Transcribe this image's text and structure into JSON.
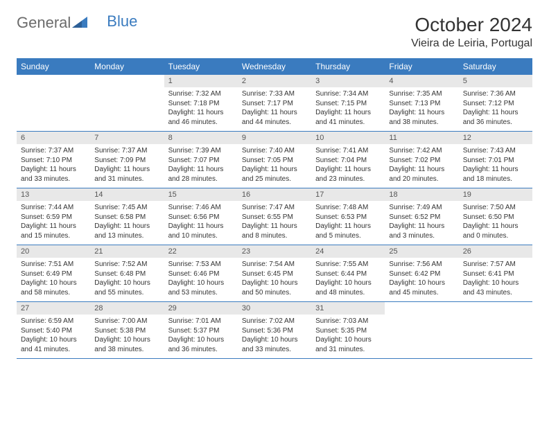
{
  "brand": {
    "general": "General",
    "blue": "Blue"
  },
  "title": "October 2024",
  "location": "Vieira de Leiria, Portugal",
  "colors": {
    "header_bg": "#3a7bbf",
    "header_text": "#ffffff",
    "daynum_bg": "#e8e8e8",
    "border": "#3a7bbf",
    "text": "#333333",
    "logo_gray": "#6b6b6b",
    "logo_blue": "#3a7bbf"
  },
  "fonts": {
    "title_size": 28,
    "location_size": 16,
    "header_size": 12,
    "daynum_size": 11,
    "body_size": 10
  },
  "days_of_week": [
    "Sunday",
    "Monday",
    "Tuesday",
    "Wednesday",
    "Thursday",
    "Friday",
    "Saturday"
  ],
  "weeks": [
    [
      null,
      null,
      {
        "n": "1",
        "sunrise": "Sunrise: 7:32 AM",
        "sunset": "Sunset: 7:18 PM",
        "daylight1": "Daylight: 11 hours",
        "daylight2": "and 46 minutes."
      },
      {
        "n": "2",
        "sunrise": "Sunrise: 7:33 AM",
        "sunset": "Sunset: 7:17 PM",
        "daylight1": "Daylight: 11 hours",
        "daylight2": "and 44 minutes."
      },
      {
        "n": "3",
        "sunrise": "Sunrise: 7:34 AM",
        "sunset": "Sunset: 7:15 PM",
        "daylight1": "Daylight: 11 hours",
        "daylight2": "and 41 minutes."
      },
      {
        "n": "4",
        "sunrise": "Sunrise: 7:35 AM",
        "sunset": "Sunset: 7:13 PM",
        "daylight1": "Daylight: 11 hours",
        "daylight2": "and 38 minutes."
      },
      {
        "n": "5",
        "sunrise": "Sunrise: 7:36 AM",
        "sunset": "Sunset: 7:12 PM",
        "daylight1": "Daylight: 11 hours",
        "daylight2": "and 36 minutes."
      }
    ],
    [
      {
        "n": "6",
        "sunrise": "Sunrise: 7:37 AM",
        "sunset": "Sunset: 7:10 PM",
        "daylight1": "Daylight: 11 hours",
        "daylight2": "and 33 minutes."
      },
      {
        "n": "7",
        "sunrise": "Sunrise: 7:37 AM",
        "sunset": "Sunset: 7:09 PM",
        "daylight1": "Daylight: 11 hours",
        "daylight2": "and 31 minutes."
      },
      {
        "n": "8",
        "sunrise": "Sunrise: 7:39 AM",
        "sunset": "Sunset: 7:07 PM",
        "daylight1": "Daylight: 11 hours",
        "daylight2": "and 28 minutes."
      },
      {
        "n": "9",
        "sunrise": "Sunrise: 7:40 AM",
        "sunset": "Sunset: 7:05 PM",
        "daylight1": "Daylight: 11 hours",
        "daylight2": "and 25 minutes."
      },
      {
        "n": "10",
        "sunrise": "Sunrise: 7:41 AM",
        "sunset": "Sunset: 7:04 PM",
        "daylight1": "Daylight: 11 hours",
        "daylight2": "and 23 minutes."
      },
      {
        "n": "11",
        "sunrise": "Sunrise: 7:42 AM",
        "sunset": "Sunset: 7:02 PM",
        "daylight1": "Daylight: 11 hours",
        "daylight2": "and 20 minutes."
      },
      {
        "n": "12",
        "sunrise": "Sunrise: 7:43 AM",
        "sunset": "Sunset: 7:01 PM",
        "daylight1": "Daylight: 11 hours",
        "daylight2": "and 18 minutes."
      }
    ],
    [
      {
        "n": "13",
        "sunrise": "Sunrise: 7:44 AM",
        "sunset": "Sunset: 6:59 PM",
        "daylight1": "Daylight: 11 hours",
        "daylight2": "and 15 minutes."
      },
      {
        "n": "14",
        "sunrise": "Sunrise: 7:45 AM",
        "sunset": "Sunset: 6:58 PM",
        "daylight1": "Daylight: 11 hours",
        "daylight2": "and 13 minutes."
      },
      {
        "n": "15",
        "sunrise": "Sunrise: 7:46 AM",
        "sunset": "Sunset: 6:56 PM",
        "daylight1": "Daylight: 11 hours",
        "daylight2": "and 10 minutes."
      },
      {
        "n": "16",
        "sunrise": "Sunrise: 7:47 AM",
        "sunset": "Sunset: 6:55 PM",
        "daylight1": "Daylight: 11 hours",
        "daylight2": "and 8 minutes."
      },
      {
        "n": "17",
        "sunrise": "Sunrise: 7:48 AM",
        "sunset": "Sunset: 6:53 PM",
        "daylight1": "Daylight: 11 hours",
        "daylight2": "and 5 minutes."
      },
      {
        "n": "18",
        "sunrise": "Sunrise: 7:49 AM",
        "sunset": "Sunset: 6:52 PM",
        "daylight1": "Daylight: 11 hours",
        "daylight2": "and 3 minutes."
      },
      {
        "n": "19",
        "sunrise": "Sunrise: 7:50 AM",
        "sunset": "Sunset: 6:50 PM",
        "daylight1": "Daylight: 11 hours",
        "daylight2": "and 0 minutes."
      }
    ],
    [
      {
        "n": "20",
        "sunrise": "Sunrise: 7:51 AM",
        "sunset": "Sunset: 6:49 PM",
        "daylight1": "Daylight: 10 hours",
        "daylight2": "and 58 minutes."
      },
      {
        "n": "21",
        "sunrise": "Sunrise: 7:52 AM",
        "sunset": "Sunset: 6:48 PM",
        "daylight1": "Daylight: 10 hours",
        "daylight2": "and 55 minutes."
      },
      {
        "n": "22",
        "sunrise": "Sunrise: 7:53 AM",
        "sunset": "Sunset: 6:46 PM",
        "daylight1": "Daylight: 10 hours",
        "daylight2": "and 53 minutes."
      },
      {
        "n": "23",
        "sunrise": "Sunrise: 7:54 AM",
        "sunset": "Sunset: 6:45 PM",
        "daylight1": "Daylight: 10 hours",
        "daylight2": "and 50 minutes."
      },
      {
        "n": "24",
        "sunrise": "Sunrise: 7:55 AM",
        "sunset": "Sunset: 6:44 PM",
        "daylight1": "Daylight: 10 hours",
        "daylight2": "and 48 minutes."
      },
      {
        "n": "25",
        "sunrise": "Sunrise: 7:56 AM",
        "sunset": "Sunset: 6:42 PM",
        "daylight1": "Daylight: 10 hours",
        "daylight2": "and 45 minutes."
      },
      {
        "n": "26",
        "sunrise": "Sunrise: 7:57 AM",
        "sunset": "Sunset: 6:41 PM",
        "daylight1": "Daylight: 10 hours",
        "daylight2": "and 43 minutes."
      }
    ],
    [
      {
        "n": "27",
        "sunrise": "Sunrise: 6:59 AM",
        "sunset": "Sunset: 5:40 PM",
        "daylight1": "Daylight: 10 hours",
        "daylight2": "and 41 minutes."
      },
      {
        "n": "28",
        "sunrise": "Sunrise: 7:00 AM",
        "sunset": "Sunset: 5:38 PM",
        "daylight1": "Daylight: 10 hours",
        "daylight2": "and 38 minutes."
      },
      {
        "n": "29",
        "sunrise": "Sunrise: 7:01 AM",
        "sunset": "Sunset: 5:37 PM",
        "daylight1": "Daylight: 10 hours",
        "daylight2": "and 36 minutes."
      },
      {
        "n": "30",
        "sunrise": "Sunrise: 7:02 AM",
        "sunset": "Sunset: 5:36 PM",
        "daylight1": "Daylight: 10 hours",
        "daylight2": "and 33 minutes."
      },
      {
        "n": "31",
        "sunrise": "Sunrise: 7:03 AM",
        "sunset": "Sunset: 5:35 PM",
        "daylight1": "Daylight: 10 hours",
        "daylight2": "and 31 minutes."
      },
      null,
      null
    ]
  ]
}
